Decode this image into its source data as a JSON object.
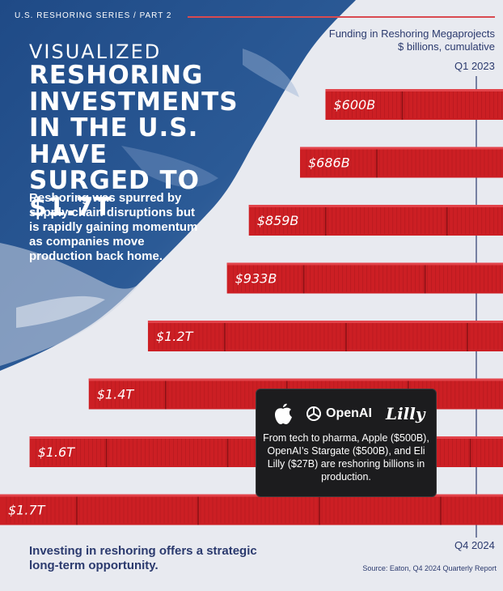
{
  "header": {
    "series_label": "U.S. RESHORING SERIES / PART 2",
    "headline_line1": "VISUALIZED",
    "headline_line2": "RESHORING",
    "headline_line3": "INVESTMENTS",
    "headline_line4": "IN THE U.S. HAVE",
    "headline_line5": "SURGED TO $1.7T"
  },
  "subtext": "Reshoring was spurred by supply chain disruptions but is rapidly gaining momentum as companies move production back home.",
  "chart_data": {
    "type": "bar",
    "title": "Funding in Reshoring  Megaprojects",
    "subtitle": "$ billions, cumulative",
    "start_label": "Q1 2023",
    "end_label": "Q4 2024",
    "values": [
      600,
      686,
      859,
      933,
      1200,
      1400,
      1600,
      1700
    ],
    "value_labels": [
      "$600B",
      "$686B",
      "$859B",
      "$933B",
      "$1.2T",
      "$1.4T",
      "$1.6T",
      "$1.7T"
    ],
    "orientation": "horizontal",
    "bar_color": "#cc1f24"
  },
  "callout": {
    "brands": [
      "OpenAI",
      "Lilly"
    ],
    "icons": [
      "apple-logo-icon",
      "openai-logo-icon"
    ],
    "text": "From tech to pharma, Apple ($500B), OpenAI’s Stargate ($500B), and Eli Lilly ($27B) are reshoring billions in production."
  },
  "footer": {
    "statement": "Investing in reshoring offers a strategic long-term opportunity.",
    "source": "Source: Eaton, Q4 2024 Quarterly Report"
  },
  "colors": {
    "navy": "#2b3a6e",
    "red": "#cc1f24",
    "ocean": "#2a4f86",
    "background": "#e8eaf0"
  }
}
